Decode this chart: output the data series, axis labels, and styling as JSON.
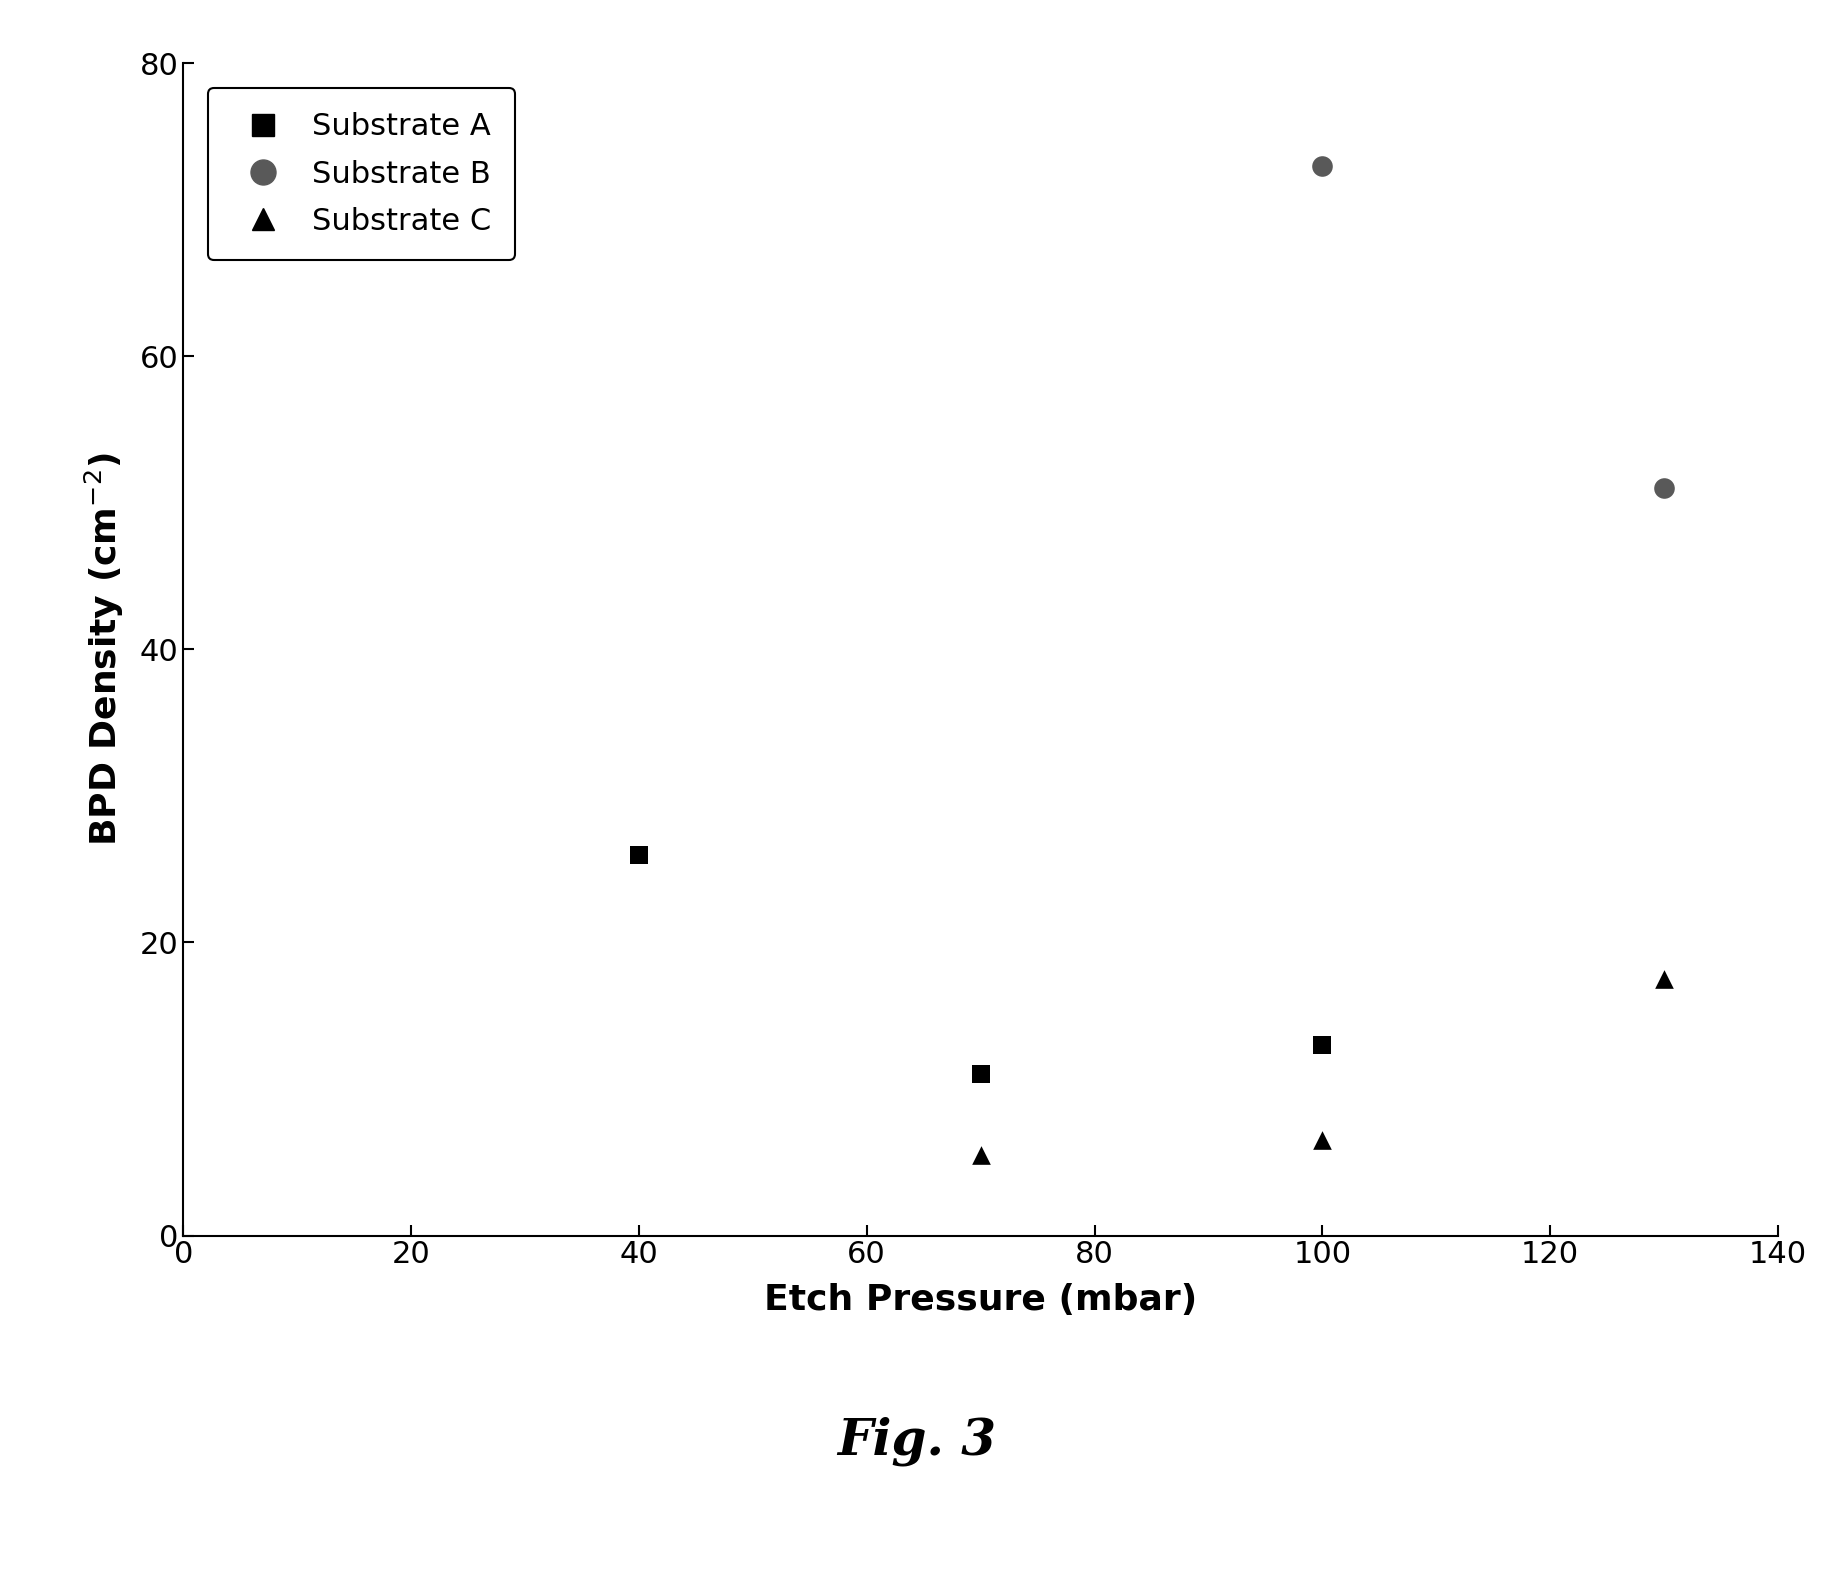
{
  "substrate_A": {
    "x": [
      40,
      70,
      100
    ],
    "y": [
      26,
      11,
      13
    ],
    "marker": "s",
    "color": "#000000",
    "label": "Substrate A",
    "markersize": 180
  },
  "substrate_B": {
    "x": [
      100,
      130
    ],
    "y": [
      73,
      51
    ],
    "marker": "o",
    "color": "#595959",
    "label": "Substrate B",
    "markersize": 220
  },
  "substrate_C": {
    "x": [
      70,
      100,
      130
    ],
    "y": [
      5.5,
      6.5,
      17.5
    ],
    "marker": "^",
    "color": "#000000",
    "label": "Substrate C",
    "markersize": 180
  },
  "xlabel": "Etch Pressure (mbar)",
  "ylabel": "BPD Density (cm-2)",
  "xlim": [
    0,
    140
  ],
  "ylim": [
    0,
    80
  ],
  "xticks": [
    0,
    20,
    40,
    60,
    80,
    100,
    120,
    140
  ],
  "yticks": [
    0,
    20,
    40,
    60,
    80
  ],
  "figure_caption": "Fig. 3",
  "background_color": "#ffffff",
  "axes_background": "#ffffff",
  "legend_fontsize": 22,
  "axis_label_fontsize": 26,
  "tick_fontsize": 22,
  "caption_fontsize": 36,
  "legend_marker_A_size": 16,
  "legend_marker_B_size": 18,
  "legend_marker_C_size": 16
}
